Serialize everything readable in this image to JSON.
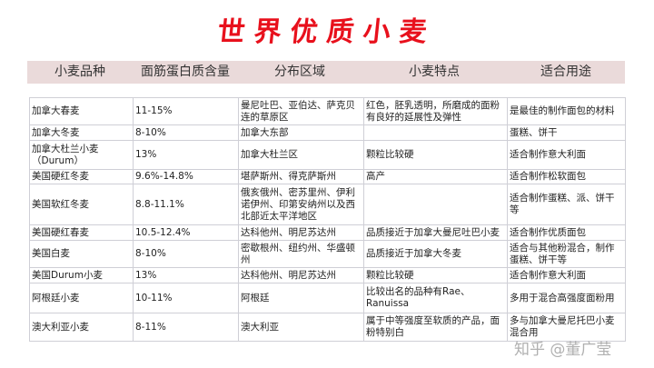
{
  "title": "世界优质小麦",
  "headers": [
    "小麦品种",
    "面筋蛋白质含量",
    "分布区域",
    "小麦特点",
    "适合用途"
  ],
  "rows": [
    [
      "加拿大春麦",
      "11-15%",
      "曼尼吐巴、亚伯达、萨克贝连的草原区",
      "红色，胚乳透明，所磨成的面粉有良好的延展性及弹性",
      "是最佳的制作面包的材料"
    ],
    [
      "加拿大冬麦",
      "8-10%",
      "加拿大东部",
      "",
      "蛋糕、饼干"
    ],
    [
      "加拿大杜兰小麦（Durum）",
      "13%",
      "加拿大杜兰区",
      "颗粒比较硬",
      "适合制作意大利面"
    ],
    [
      "美国硬红冬麦",
      "9.6%-14.8%",
      "堪萨斯州、得克萨斯州",
      "高产",
      "适合制作松软面包"
    ],
    [
      "美国软红冬麦",
      "8.8-11.1%",
      "俄亥俄州、密苏里州、伊利诺伊州、印第安纳州以及西北部近太平洋地区",
      "",
      "适合制作蛋糕、派、饼干等"
    ],
    [
      "美国硬红春麦",
      "10.5-12.4%",
      "达科他州、明尼苏达州",
      "品质接近于加拿大曼尼吐巴小麦",
      "适合制作优质面包"
    ],
    [
      "美国白麦",
      "8-10%",
      "密歇根州、纽约州、华盛顿州",
      "品质接近于加拿大冬麦",
      "适合与其他粉混合，制作蛋糕、饼干等"
    ],
    [
      "美国Durum小麦",
      "13%",
      "达科他州、明尼苏达州",
      "颗粒比较硬",
      "适合制作意大利面"
    ],
    [
      "阿根廷小麦",
      "10-11%",
      "阿根廷",
      "比较出名的品种有Rae、Ranuissa",
      "多用于混合高强度面粉用"
    ],
    [
      "澳大利亚小麦",
      "8-11%",
      "澳大利亚",
      "属于中等强度至软质的产品，面粉特别白",
      "多与加拿大曼尼托巴小麦混合用"
    ]
  ],
  "watermark": "知乎 @董广莹",
  "colors": {
    "title": "#e8101c",
    "header_bg": "#eadada"
  }
}
